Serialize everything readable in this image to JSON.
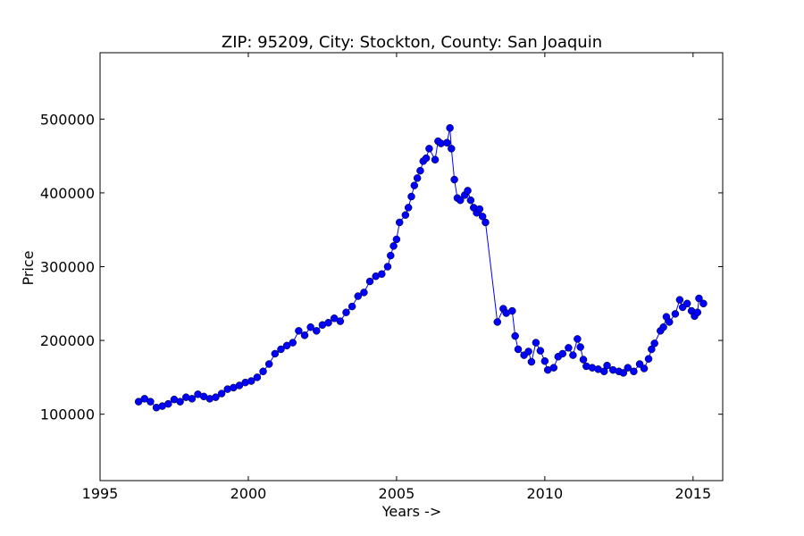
{
  "chart_data": {
    "type": "line",
    "title": "ZIP: 95209, City: Stockton, County: San Joaquin",
    "x_label": "Years ->",
    "y_label": "Price",
    "x": [
      1996.3,
      1996.5,
      1996.7,
      1996.9,
      1997.1,
      1997.3,
      1997.5,
      1997.7,
      1997.9,
      1998.1,
      1998.3,
      1998.5,
      1998.7,
      1998.9,
      1999.1,
      1999.3,
      1999.5,
      1999.7,
      1999.9,
      2000.1,
      2000.3,
      2000.5,
      2000.7,
      2000.9,
      2001.1,
      2001.3,
      2001.5,
      2001.7,
      2001.9,
      2002.1,
      2002.3,
      2002.5,
      2002.7,
      2002.9,
      2003.1,
      2003.3,
      2003.5,
      2003.7,
      2003.9,
      2004.1,
      2004.3,
      2004.5,
      2004.7,
      2004.8,
      2004.9,
      2005.0,
      2005.1,
      2005.3,
      2005.4,
      2005.5,
      2005.6,
      2005.7,
      2005.8,
      2005.9,
      2006.0,
      2006.1,
      2006.3,
      2006.4,
      2006.5,
      2006.7,
      2006.8,
      2006.85,
      2006.95,
      2007.05,
      2007.15,
      2007.3,
      2007.4,
      2007.5,
      2007.6,
      2007.7,
      2007.8,
      2007.9,
      2008.0,
      2008.4,
      2008.6,
      2008.7,
      2008.9,
      2009.0,
      2009.1,
      2009.3,
      2009.45,
      2009.55,
      2009.7,
      2009.85,
      2010.0,
      2010.1,
      2010.3,
      2010.45,
      2010.6,
      2010.8,
      2010.95,
      2011.1,
      2011.2,
      2011.3,
      2011.4,
      2011.6,
      2011.8,
      2012.0,
      2012.1,
      2012.3,
      2012.5,
      2012.65,
      2012.8,
      2013.0,
      2013.2,
      2013.35,
      2013.5,
      2013.6,
      2013.7,
      2013.9,
      2014.0,
      2014.1,
      2014.2,
      2014.4,
      2014.55,
      2014.65,
      2014.8,
      2014.95,
      2015.05,
      2015.15,
      2015.2,
      2015.35
    ],
    "series": [
      {
        "color": "#0000ff",
        "values": [
          117000,
          121000,
          117000,
          109000,
          111000,
          114000,
          120000,
          117000,
          123000,
          121000,
          127000,
          124000,
          121000,
          123000,
          128000,
          134000,
          136000,
          139000,
          143000,
          145000,
          150000,
          158000,
          168000,
          182000,
          188000,
          193000,
          197000,
          213000,
          207000,
          218000,
          213000,
          221000,
          224000,
          230000,
          226000,
          238000,
          246000,
          260000,
          265000,
          280000,
          287000,
          290000,
          300000,
          315000,
          328000,
          337000,
          360000,
          370000,
          380000,
          395000,
          410000,
          420000,
          430000,
          443000,
          447000,
          460000,
          445000,
          470000,
          467000,
          468000,
          488000,
          460000,
          418000,
          393000,
          390000,
          397000,
          403000,
          390000,
          380000,
          373000,
          378000,
          368000,
          360000,
          225000,
          243000,
          237000,
          240000,
          206000,
          188000,
          180000,
          185000,
          171000,
          197000,
          186000,
          172000,
          160000,
          163000,
          178000,
          182000,
          190000,
          180000,
          202000,
          191000,
          174000,
          165000,
          163000,
          161000,
          158000,
          166000,
          160000,
          158000,
          156000,
          163000,
          158000,
          168000,
          162000,
          175000,
          188000,
          196000,
          213000,
          218000,
          232000,
          225000,
          236000,
          255000,
          245000,
          250000,
          240000,
          233000,
          238000,
          257000,
          250000
        ]
      }
    ],
    "xlim": [
      1995,
      2016
    ],
    "xticks": [
      1995,
      2000,
      2005,
      2010,
      2015
    ],
    "ylim": [
      10000,
      590000
    ],
    "yticks": [
      100000,
      200000,
      300000,
      400000,
      500000
    ]
  }
}
